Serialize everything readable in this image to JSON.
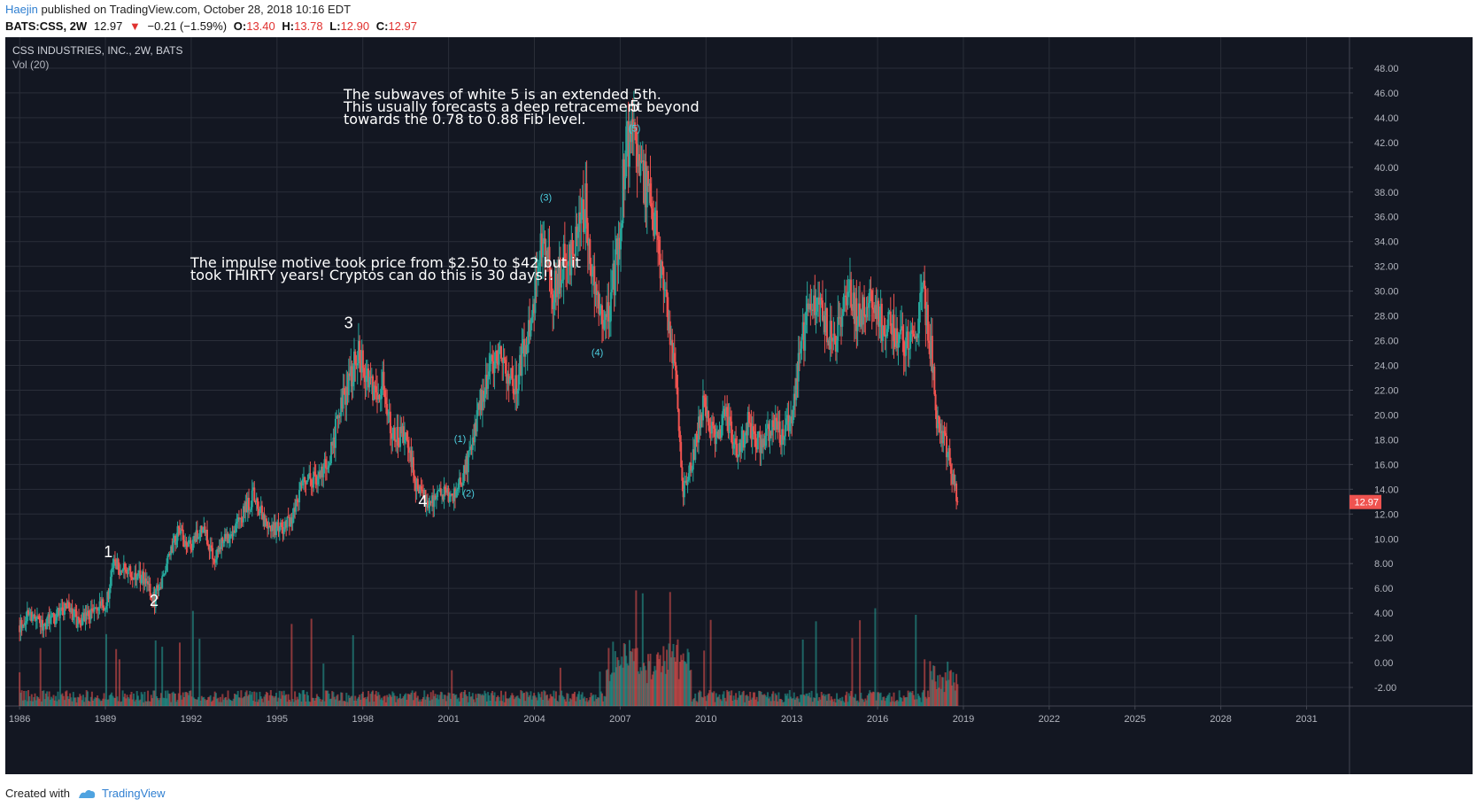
{
  "header": {
    "author": "Haejin",
    "published_text": "published on TradingView.com, October 28, 2018 10:16 EDT",
    "symbol": "BATS:CSS, 2W",
    "last": "12.97",
    "change": "−0.21 (−1.59%)",
    "open_label": "O:",
    "open": "13.40",
    "high_label": "H:",
    "high": "13.78",
    "low_label": "L:",
    "low": "12.90",
    "close_label": "C:",
    "close": "12.97"
  },
  "footer": {
    "created_with": "Created with",
    "brand": "TradingView"
  },
  "chart_data": {
    "type": "candlestick",
    "title": "CSS INDUSTRIES, INC., 2W, BATS",
    "volume_label": "Vol (20)",
    "x_ticks": [
      "1986",
      "1989",
      "1992",
      "1995",
      "1998",
      "2001",
      "2004",
      "2007",
      "2010",
      "2013",
      "2016",
      "2019",
      "2022",
      "2025",
      "2028",
      "2031"
    ],
    "x_range": [
      1985.5,
      2032.5
    ],
    "y_ticks": [
      "48.00",
      "46.00",
      "44.00",
      "42.00",
      "40.00",
      "38.00",
      "36.00",
      "34.00",
      "32.00",
      "30.00",
      "28.00",
      "26.00",
      "24.00",
      "22.00",
      "20.00",
      "18.00",
      "16.00",
      "14.00",
      "12.00",
      "10.00",
      "8.00",
      "6.00",
      "4.00",
      "2.00",
      "0.00",
      "-2.00"
    ],
    "y_range": [
      -3.5,
      50.5
    ],
    "last_price": "12.97",
    "price_path": [
      [
        1986.0,
        3.0
      ],
      [
        1986.4,
        4.0
      ],
      [
        1986.8,
        3.2
      ],
      [
        1987.2,
        3.6
      ],
      [
        1987.7,
        4.5
      ],
      [
        1988.0,
        3.4
      ],
      [
        1988.6,
        4.2
      ],
      [
        1989.0,
        4.6
      ],
      [
        1989.3,
        7.9
      ],
      [
        1989.8,
        7.2
      ],
      [
        1990.3,
        6.8
      ],
      [
        1990.7,
        5.0
      ],
      [
        1991.1,
        7.6
      ],
      [
        1991.5,
        10.5
      ],
      [
        1992.0,
        9.5
      ],
      [
        1992.4,
        10.8
      ],
      [
        1992.8,
        8.6
      ],
      [
        1993.2,
        10.0
      ],
      [
        1993.8,
        12.0
      ],
      [
        1994.2,
        13.6
      ],
      [
        1994.6,
        11.0
      ],
      [
        1995.1,
        10.8
      ],
      [
        1995.5,
        11.5
      ],
      [
        1995.9,
        15.0
      ],
      [
        1996.4,
        14.8
      ],
      [
        1996.8,
        16.5
      ],
      [
        1997.2,
        20.0
      ],
      [
        1997.6,
        23.5
      ],
      [
        1997.9,
        25.0
      ],
      [
        1998.3,
        22.0
      ],
      [
        1998.7,
        22.5
      ],
      [
        1999.1,
        18.0
      ],
      [
        1999.5,
        18.2
      ],
      [
        1999.9,
        14.0
      ],
      [
        2000.3,
        13.0
      ],
      [
        2000.7,
        13.7
      ],
      [
        2001.1,
        13.2
      ],
      [
        2001.4,
        14.5
      ],
      [
        2001.8,
        17.0
      ],
      [
        2002.1,
        21.0
      ],
      [
        2002.5,
        24.0
      ],
      [
        2002.9,
        24.5
      ],
      [
        2003.3,
        22.0
      ],
      [
        2003.7,
        26.0
      ],
      [
        2004.0,
        30.0
      ],
      [
        2004.3,
        35.0
      ],
      [
        2004.6,
        30.0
      ],
      [
        2005.0,
        32.0
      ],
      [
        2005.4,
        33.5
      ],
      [
        2005.8,
        37.0
      ],
      [
        2006.1,
        30.0
      ],
      [
        2006.5,
        27.0
      ],
      [
        2006.9,
        33.0
      ],
      [
        2007.2,
        41.5
      ],
      [
        2007.5,
        42.0
      ],
      [
        2007.8,
        39.0
      ],
      [
        2008.2,
        36.0
      ],
      [
        2008.5,
        30.0
      ],
      [
        2008.9,
        24.0
      ],
      [
        2009.2,
        13.5
      ],
      [
        2009.5,
        16.0
      ],
      [
        2009.9,
        21.0
      ],
      [
        2010.3,
        18.0
      ],
      [
        2010.7,
        20.0
      ],
      [
        2011.1,
        17.0
      ],
      [
        2011.5,
        19.5
      ],
      [
        2011.9,
        17.5
      ],
      [
        2012.3,
        19.0
      ],
      [
        2012.7,
        18.5
      ],
      [
        2013.0,
        20.0
      ],
      [
        2013.3,
        25.0
      ],
      [
        2013.7,
        30.0
      ],
      [
        2014.1,
        27.5
      ],
      [
        2014.5,
        26.0
      ],
      [
        2014.9,
        30.0
      ],
      [
        2015.3,
        28.0
      ],
      [
        2015.7,
        29.5
      ],
      [
        2016.1,
        27.5
      ],
      [
        2016.5,
        27.0
      ],
      [
        2016.9,
        26.0
      ],
      [
        2017.3,
        27.0
      ],
      [
        2017.6,
        29.5
      ],
      [
        2017.9,
        25.0
      ],
      [
        2018.1,
        19.0
      ],
      [
        2018.4,
        17.5
      ],
      [
        2018.7,
        14.0
      ],
      [
        2018.8,
        12.97
      ]
    ],
    "annotations": [
      {
        "text": "The subwaves of white 5 is an extended 5th. This usually forecasts a deep retracement beyond towards the 0.78 to 0.88 Fib level."
      },
      {
        "text": "The impulse motive took price from $2.50 to $42 but it took THIRTY years! Cryptos can do this is 30 days!!"
      }
    ],
    "wave_labels": [
      {
        "text": "1",
        "x": 1989.1,
        "y": 8.5,
        "color": "#ffffff"
      },
      {
        "text": "2",
        "x": 1990.7,
        "y": 4.6,
        "color": "#ffffff"
      },
      {
        "text": "3",
        "x": 1997.5,
        "y": 27.0,
        "color": "#ffffff"
      },
      {
        "text": "4",
        "x": 2000.1,
        "y": 12.6,
        "color": "#ffffff"
      },
      {
        "text": "5",
        "x": 2007.5,
        "y": 44.5,
        "color": "#ffffff"
      },
      {
        "text": "(1)",
        "x": 2001.4,
        "y": 17.8,
        "color": "#4dd0e1"
      },
      {
        "text": "(2)",
        "x": 2001.7,
        "y": 13.4,
        "color": "#4dd0e1"
      },
      {
        "text": "(3)",
        "x": 2004.4,
        "y": 37.3,
        "color": "#4dd0e1"
      },
      {
        "text": "(4)",
        "x": 2006.2,
        "y": 24.8,
        "color": "#4dd0e1"
      },
      {
        "text": "(5)",
        "x": 2007.5,
        "y": 42.9,
        "color": "#4dd0e1"
      }
    ],
    "colors": {
      "up": "#26a69a",
      "down": "#ef5350",
      "background": "#131722",
      "grid": "#2a2e39",
      "text": "#b2b5be",
      "annotation": "#ffffff",
      "price_tag": "#ef5350"
    },
    "grid": true
  }
}
